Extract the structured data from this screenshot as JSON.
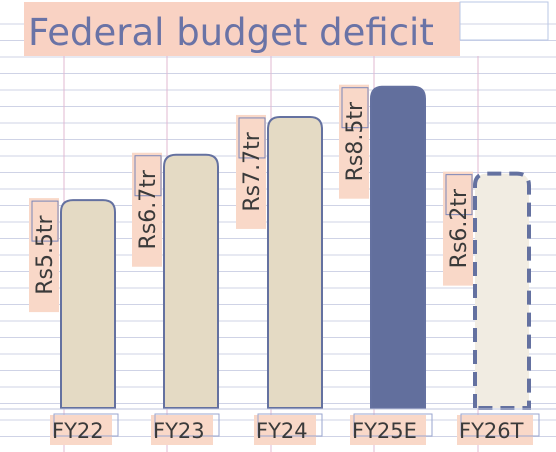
{
  "chart_data": {
    "type": "bar",
    "title": "Federal budget deficit",
    "categories": [
      "FY22",
      "FY23",
      "FY24",
      "FY25E",
      "FY26T"
    ],
    "values": [
      5.5,
      6.7,
      7.7,
      8.5,
      6.2
    ],
    "value_labels": [
      "Rs5.5tr",
      "Rs6.7tr",
      "Rs7.7tr",
      "Rs8.5tr",
      "Rs6.2tr"
    ],
    "unit": "Rs trillion",
    "xlabel": "",
    "ylabel": "",
    "ylim": [
      0,
      9
    ],
    "grid": true,
    "legend": "none",
    "bar_styles": [
      "actual",
      "actual",
      "actual",
      "estimate",
      "target"
    ],
    "colors": {
      "actual": "#e4dac4",
      "estimate": "#626f9d",
      "target": "#f1ece2",
      "outline": "#6471a0",
      "label_highlight": "#f9d8c8",
      "title_highlight": "#f9d2c3",
      "title_text": "#6a73a6",
      "grid": "#cfd3e6"
    }
  }
}
